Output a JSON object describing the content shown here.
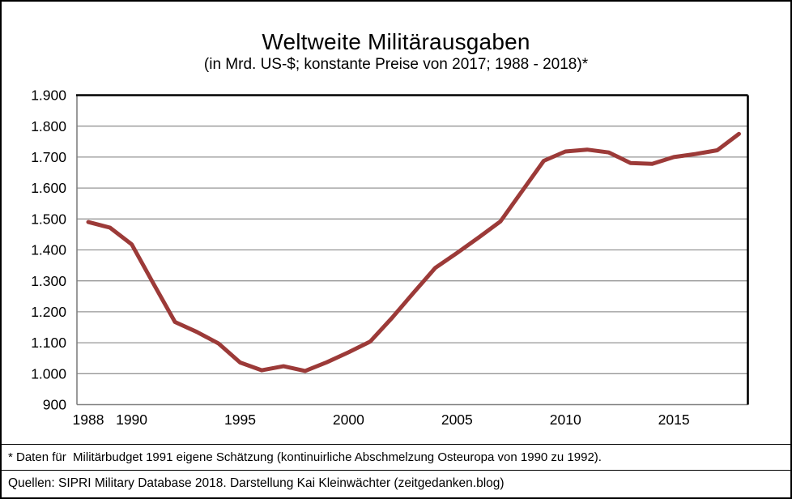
{
  "title": "Weltweite Militärausgaben",
  "subtitle": "(in Mrd. US-$; konstante Preise von 2017; 1988 - 2018)*",
  "footnote": "* Daten für  Militärbudget 1991 eigene Schätzung (kontinuirliche Abschmelzung Osteuropa von 1990 zu 1992).",
  "source": "Quellen: SIPRI Military Database 2018. Darstellung Kai Kleinwächter (zeitgedanken.blog)",
  "chart_data": {
    "type": "line",
    "title": "Weltweite Militärausgaben",
    "subtitle": "(in Mrd. US-$; konstante Preise von 2017; 1988 - 2018)*",
    "x": [
      1988,
      1989,
      1990,
      1991,
      1992,
      1993,
      1994,
      1995,
      1996,
      1997,
      1998,
      1999,
      2000,
      2001,
      2002,
      2003,
      2004,
      2005,
      2006,
      2007,
      2008,
      2009,
      2010,
      2011,
      2012,
      2013,
      2014,
      2015,
      2016,
      2017,
      2018
    ],
    "series": [
      {
        "name": "Weltweite Militärausgaben (Mrd. US-$, konstante Preise 2017)",
        "values": [
          1490,
          1472,
          1418,
          1292,
          1167,
          1135,
          1098,
          1036,
          1011,
          1024,
          1009,
          1037,
          1069,
          1104,
          1180,
          1262,
          1342,
          1390,
          1440,
          1492,
          1590,
          1688,
          1718,
          1724,
          1715,
          1681,
          1678,
          1700,
          1710,
          1722,
          1775
        ]
      }
    ],
    "xlabel": "",
    "ylabel": "",
    "ylim": [
      900,
      1900
    ],
    "ytick_step": 100,
    "ytick_labels": [
      "900",
      "1.000",
      "1.100",
      "1.200",
      "1.300",
      "1.400",
      "1.500",
      "1.600",
      "1.700",
      "1.800",
      "1.900"
    ],
    "xticks": [
      1988,
      1990,
      1995,
      2000,
      2005,
      2010,
      2015
    ],
    "grid": "horizontal",
    "legend_position": "none",
    "line_color": "#9c3a38",
    "gridline_color": "#969696",
    "axis_color": "#808080",
    "border_color": "#000000"
  }
}
